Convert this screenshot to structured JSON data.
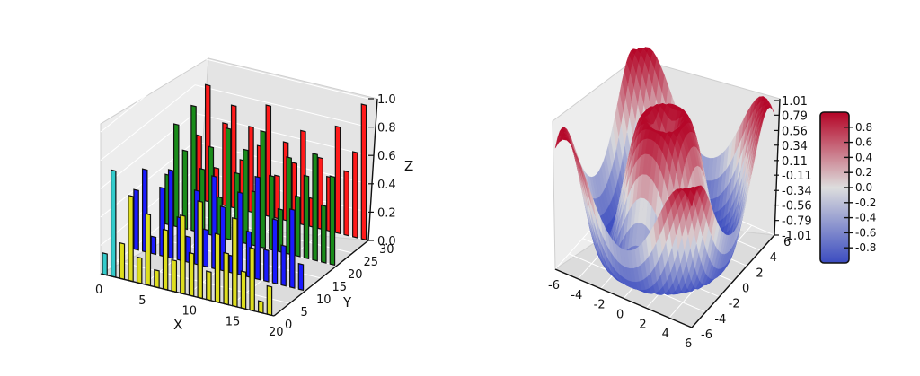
{
  "chart_data": [
    {
      "type": "bar",
      "style": "3d-bars-xkcd",
      "xlabel": "X",
      "ylabel": "Y",
      "zlabel": "Z",
      "xlim": [
        0,
        20
      ],
      "ylim": [
        0,
        30
      ],
      "zlim": [
        0,
        1.0
      ],
      "x_ticks": [
        "0",
        "5",
        "10",
        "15",
        "20"
      ],
      "y_ticks": [
        "0",
        "5",
        "10",
        "15",
        "20",
        "25",
        "30"
      ],
      "z_ticks": [
        "0.0",
        "0.2",
        "0.4",
        "0.6",
        "0.8",
        "1.0"
      ],
      "grid": true,
      "x": [
        0,
        1,
        2,
        3,
        4,
        5,
        6,
        7,
        8,
        9,
        10,
        11,
        12,
        13,
        14,
        15,
        16,
        17,
        18,
        19
      ],
      "series": [
        {
          "y": 0,
          "color": "#dede1e",
          "values": [
            0.15,
            0.75,
            0.25,
            0.6,
            0.18,
            0.5,
            0.12,
            0.42,
            0.22,
            0.55,
            0.3,
            0.68,
            0.2,
            0.48,
            0.36,
            0.62,
            0.26,
            0.44,
            0.08,
            0.2
          ]
        },
        {
          "y": 10,
          "color": "#1a1aff",
          "values": [
            0.42,
            0.58,
            0.12,
            0.48,
            0.62,
            0.3,
            0.18,
            0.52,
            0.26,
            0.65,
            0.45,
            0.12,
            0.58,
            0.32,
            0.72,
            0.22,
            0.45,
            0.28,
            0.55,
            0.18
          ]
        },
        {
          "y": 20,
          "color": "#1a8c1a",
          "values": [
            0.35,
            0.72,
            0.55,
            0.88,
            0.45,
            0.62,
            0.28,
            0.78,
            0.48,
            0.66,
            0.38,
            0.82,
            0.52,
            0.3,
            0.68,
            0.42,
            0.58,
            0.75,
            0.4,
            0.62
          ]
        },
        {
          "y": 30,
          "color": "#ff1a1a",
          "values": [
            0.45,
            0.82,
            0.25,
            0.58,
            0.72,
            0.35,
            0.6,
            0.48,
            0.78,
            0.3,
            0.55,
            0.42,
            0.66,
            0.2,
            0.5,
            0.38,
            0.75,
            0.45,
            0.6,
            0.95
          ]
        }
      ],
      "highlight_color": "#33cccc"
    },
    {
      "type": "surface",
      "function": "sin(sqrt(x^2 + y^2))",
      "xlim": [
        -6,
        6
      ],
      "ylim": [
        -6,
        6
      ],
      "zlim": [
        -1.01,
        1.01
      ],
      "x_ticks": [
        "-6",
        "-4",
        "-2",
        "0",
        "2",
        "4",
        "6"
      ],
      "y_ticks": [
        "-6",
        "-4",
        "-2",
        "0",
        "2",
        "4",
        "6"
      ],
      "z_ticks": [
        "1.01",
        "0.79",
        "0.56",
        "0.34",
        "0.11",
        "-0.11",
        "-0.34",
        "-0.56",
        "-0.79",
        "-1.01"
      ],
      "colormap": "coolwarm",
      "colormap_colors": [
        "#3b4cc0",
        "#dddddd",
        "#b40426"
      ],
      "colorbar_ticks": [
        "0.8",
        "0.6",
        "0.4",
        "0.2",
        "0.0",
        "-0.2",
        "-0.4",
        "-0.6",
        "-0.8"
      ],
      "grid": true
    }
  ]
}
